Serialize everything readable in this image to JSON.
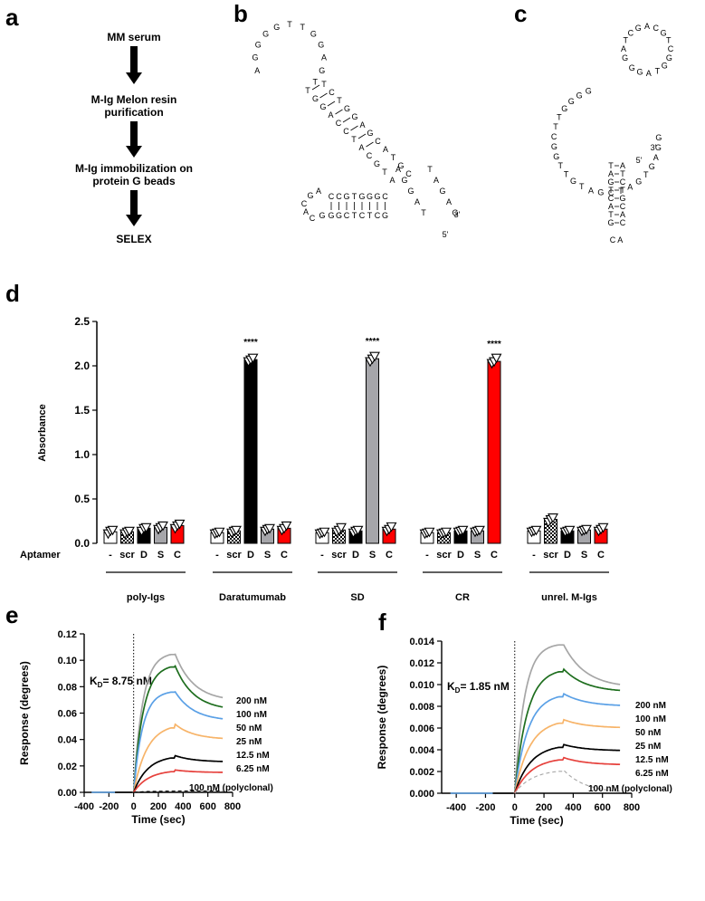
{
  "panel_labels": {
    "a": "a",
    "b": "b",
    "c": "c",
    "d": "d",
    "e": "e",
    "f": "f"
  },
  "flowchart": {
    "steps": [
      "MM serum",
      "M-Ig Melon resin",
      "purification",
      "M-Ig immobilization on",
      "protein G beads",
      "SELEX"
    ]
  },
  "hairpin_b": {
    "loop": [
      "A",
      "G",
      "G",
      "G",
      "G",
      "T",
      "T",
      "G",
      "G",
      "A",
      "G",
      "T"
    ],
    "left_strand": [
      "T",
      "G",
      "G",
      "A",
      "C",
      "C",
      "T",
      "A",
      "C",
      "G",
      "T",
      "A"
    ],
    "right_strand": [
      "T",
      "C",
      "T",
      "G",
      "G",
      "A",
      "G",
      "C",
      "A",
      "T",
      "G",
      "C"
    ],
    "bottom_row1": [
      "C",
      "C",
      "G",
      "T",
      "G",
      "G",
      "G",
      "C"
    ],
    "bottom_row2": [
      "G",
      "G",
      "C",
      "T",
      "C",
      "T",
      "C",
      "G"
    ],
    "tail": [
      "A",
      "G",
      "G",
      "A",
      "T",
      "T",
      "A",
      "G",
      "A",
      "G"
    ],
    "end3": "3'",
    "end5": "5'"
  },
  "hairpin_c": {
    "big_loop": [
      "G",
      "G",
      "G",
      "G",
      "T",
      "T",
      "C",
      "G",
      "G",
      "T",
      "T",
      "G",
      "T",
      "A",
      "G",
      "C",
      "T",
      "A",
      "G",
      "T",
      "G",
      "A",
      "G",
      "G"
    ],
    "small_loop": [
      "G",
      "A",
      "T",
      "C",
      "G",
      "A",
      "C",
      "G",
      "T",
      "C",
      "G",
      "G",
      "T",
      "A",
      "G",
      "G"
    ],
    "stem_left": [
      "T",
      "A",
      "G",
      "T",
      "C",
      "A",
      "T",
      "G"
    ],
    "stem_right": [
      "A",
      "T",
      "C",
      "T",
      "G",
      "C",
      "A",
      "C"
    ],
    "cap": "C A",
    "end3": "3'",
    "end5": "5'"
  },
  "chart_data": [
    {
      "type": "bar",
      "panel": "d",
      "ylabel": "Absorbance",
      "ylim": [
        0,
        2.5
      ],
      "yticks": [
        "0.0",
        "0.5",
        "1.0",
        "1.5",
        "2.0",
        "2.5"
      ],
      "aptamer_label": "Aptamer",
      "aptamers": [
        "-",
        "scr",
        "D",
        "S",
        "C"
      ],
      "groups": [
        {
          "name": "poly-Igs",
          "values": [
            0.13,
            0.13,
            0.17,
            0.18,
            0.2
          ],
          "points": [
            [
              0.11,
              0.14,
              0.15
            ],
            [
              0.11,
              0.13,
              0.14
            ],
            [
              0.14,
              0.17,
              0.18
            ],
            [
              0.16,
              0.18,
              0.2
            ],
            [
              0.17,
              0.2,
              0.22
            ]
          ],
          "sig": [
            "",
            "",
            "",
            "",
            ""
          ]
        },
        {
          "name": "Daratumumab",
          "values": [
            0.12,
            0.14,
            2.07,
            0.16,
            0.17
          ],
          "points": [
            [
              0.11,
              0.12,
              0.13
            ],
            [
              0.12,
              0.14,
              0.15
            ],
            [
              2.05,
              2.07,
              2.09
            ],
            [
              0.14,
              0.16,
              0.17
            ],
            [
              0.15,
              0.17,
              0.2
            ]
          ],
          "sig": [
            "",
            "",
            "****",
            "",
            ""
          ]
        },
        {
          "name": "SD",
          "values": [
            0.12,
            0.15,
            0.14,
            2.08,
            0.16
          ],
          "points": [
            [
              0.11,
              0.12,
              0.13
            ],
            [
              0.13,
              0.15,
              0.18
            ],
            [
              0.12,
              0.14,
              0.15
            ],
            [
              2.05,
              2.08,
              2.11
            ],
            [
              0.14,
              0.16,
              0.19
            ]
          ],
          "sig": [
            "",
            "",
            "",
            "****",
            ""
          ]
        },
        {
          "name": "CR",
          "values": [
            0.12,
            0.12,
            0.14,
            0.14,
            2.05
          ],
          "points": [
            [
              0.11,
              0.12,
              0.13
            ],
            [
              0.11,
              0.12,
              0.13
            ],
            [
              0.13,
              0.14,
              0.15
            ],
            [
              0.13,
              0.14,
              0.15
            ],
            [
              2.03,
              2.05,
              2.09
            ]
          ],
          "sig": [
            "",
            "",
            "",
            "",
            "****"
          ]
        },
        {
          "name": "unrel. M-Igs",
          "values": [
            0.14,
            0.27,
            0.14,
            0.15,
            0.16
          ],
          "points": [
            [
              0.13,
              0.14,
              0.15
            ],
            [
              0.24,
              0.27,
              0.29
            ],
            [
              0.13,
              0.14,
              0.15
            ],
            [
              0.14,
              0.15,
              0.16
            ],
            [
              0.14,
              0.16,
              0.18
            ]
          ],
          "sig": [
            "",
            "",
            "",
            "",
            ""
          ]
        }
      ],
      "colors": {
        "-": "#ffffff",
        "scr": "checker",
        "D": "#000000",
        "S": "#a6a6aa",
        "C": "#ff0000"
      }
    },
    {
      "type": "line",
      "panel": "e",
      "xlabel": "Time (sec)",
      "ylabel": "Response (degrees)",
      "xlim": [
        -400,
        800
      ],
      "ylim": [
        0,
        0.12
      ],
      "xticks": [
        -400,
        -200,
        0,
        200,
        400,
        600,
        800
      ],
      "yticks": [
        "0.00",
        "0.02",
        "0.04",
        "0.06",
        "0.08",
        "0.10",
        "0.12"
      ],
      "kd_prefix": "K",
      "kd_sub": "D",
      "kd_value": "= 8.75 nM",
      "series": [
        {
          "name": "200 nM",
          "color": "#a6a6a6",
          "peak": 0.106,
          "end": 0.069,
          "rise": 24
        },
        {
          "name": "100 nM",
          "color": "#1e6e1e",
          "peak": 0.097,
          "end": 0.062,
          "rise": 26
        },
        {
          "name": "50 nM",
          "color": "#5aa0e6",
          "peak": 0.077,
          "end": 0.054,
          "rise": 24
        },
        {
          "name": "25 nM",
          "color": "#f7b469",
          "peak": 0.052,
          "end": 0.04,
          "rise": 36
        },
        {
          "name": "12.5 nM",
          "color": "#000000",
          "peak": 0.028,
          "end": 0.023,
          "rise": 38
        },
        {
          "name": "6.25 nM",
          "color": "#e6413c",
          "peak": 0.017,
          "end": 0.015,
          "rise": 40
        },
        {
          "name": "100 nM (polyclonal)",
          "color": "#000000",
          "dashed": true,
          "peak": 0.001,
          "end": 0.001,
          "rise": 40
        }
      ]
    },
    {
      "type": "line",
      "panel": "f",
      "xlabel": "Time (sec)",
      "ylabel": "Response (degrees)",
      "xlim": [
        -500,
        800
      ],
      "ylim": [
        0,
        0.014
      ],
      "xticks": [
        -400,
        -200,
        0,
        200,
        400,
        600,
        800
      ],
      "yticks": [
        "0.000",
        "0.002",
        "0.004",
        "0.006",
        "0.008",
        "0.010",
        "0.012",
        "0.014"
      ],
      "kd_prefix": "K",
      "kd_sub": "D",
      "kd_value": "= 1.85 nM",
      "series": [
        {
          "name": "200 nM",
          "color": "#a6a6a6",
          "peak": 0.0138,
          "end": 0.0097,
          "rise": 22
        },
        {
          "name": "100 nM",
          "color": "#1e6e1e",
          "peak": 0.0115,
          "end": 0.0093,
          "rise": 28
        },
        {
          "name": "50 nM",
          "color": "#5aa0e6",
          "peak": 0.0092,
          "end": 0.008,
          "rise": 30
        },
        {
          "name": "25 nM",
          "color": "#f7b469",
          "peak": 0.0068,
          "end": 0.006,
          "rise": 34
        },
        {
          "name": "12.5 nM",
          "color": "#000000",
          "peak": 0.0045,
          "end": 0.0039,
          "rise": 36
        },
        {
          "name": "6.25 nM",
          "color": "#e6413c",
          "peak": 0.0033,
          "end": 0.0026,
          "rise": 38
        },
        {
          "name": "100 nM (polyclonal)",
          "color": "#a6a6a6",
          "dashed": true,
          "peak": 0.0022,
          "end": 0.0,
          "rise": 40
        }
      ]
    }
  ]
}
